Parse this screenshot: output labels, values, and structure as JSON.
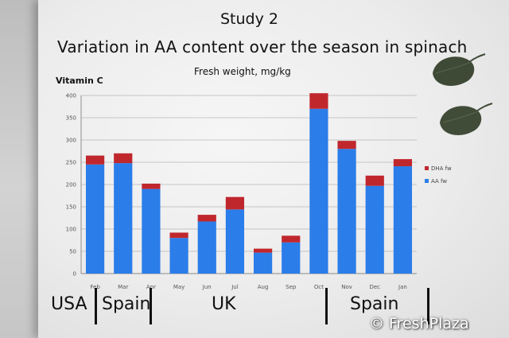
{
  "slide": {
    "title": "Study 2",
    "subtitle": "Variation in AA content over the season in spinach",
    "ylabel_left": "Vitamin C",
    "ylabel_unit": "Fresh weight, mg/kg"
  },
  "regions": [
    {
      "label": "USA"
    },
    {
      "label": "Spain"
    },
    {
      "label": "UK"
    },
    {
      "label": "Spain"
    }
  ],
  "watermark": "© FreshPlaza",
  "colors": {
    "aa": "#2b7de9",
    "dha": "#c0272d"
  },
  "icons": [
    "spinach-leaf-icon",
    "spinach-leaf-icon"
  ],
  "chart_data": {
    "type": "bar",
    "stacked": true,
    "categories": [
      "Feb",
      "Mar",
      "Apr",
      "May",
      "Jun",
      "Jul",
      "Aug",
      "Sep",
      "Oct",
      "Nov",
      "Dec",
      "Jan"
    ],
    "series": [
      {
        "name": "AA fw",
        "values": [
          245,
          248,
          190,
          80,
          117,
          144,
          47,
          70,
          370,
          280,
          197,
          241
        ]
      },
      {
        "name": "DHA fw",
        "values": [
          20,
          22,
          12,
          12,
          15,
          28,
          9,
          15,
          35,
          18,
          23,
          16
        ]
      }
    ],
    "ylim": [
      0,
      400
    ],
    "yticks": [
      0,
      50,
      100,
      150,
      200,
      250,
      300,
      350,
      400
    ],
    "grid": true,
    "legend_position": "right"
  }
}
